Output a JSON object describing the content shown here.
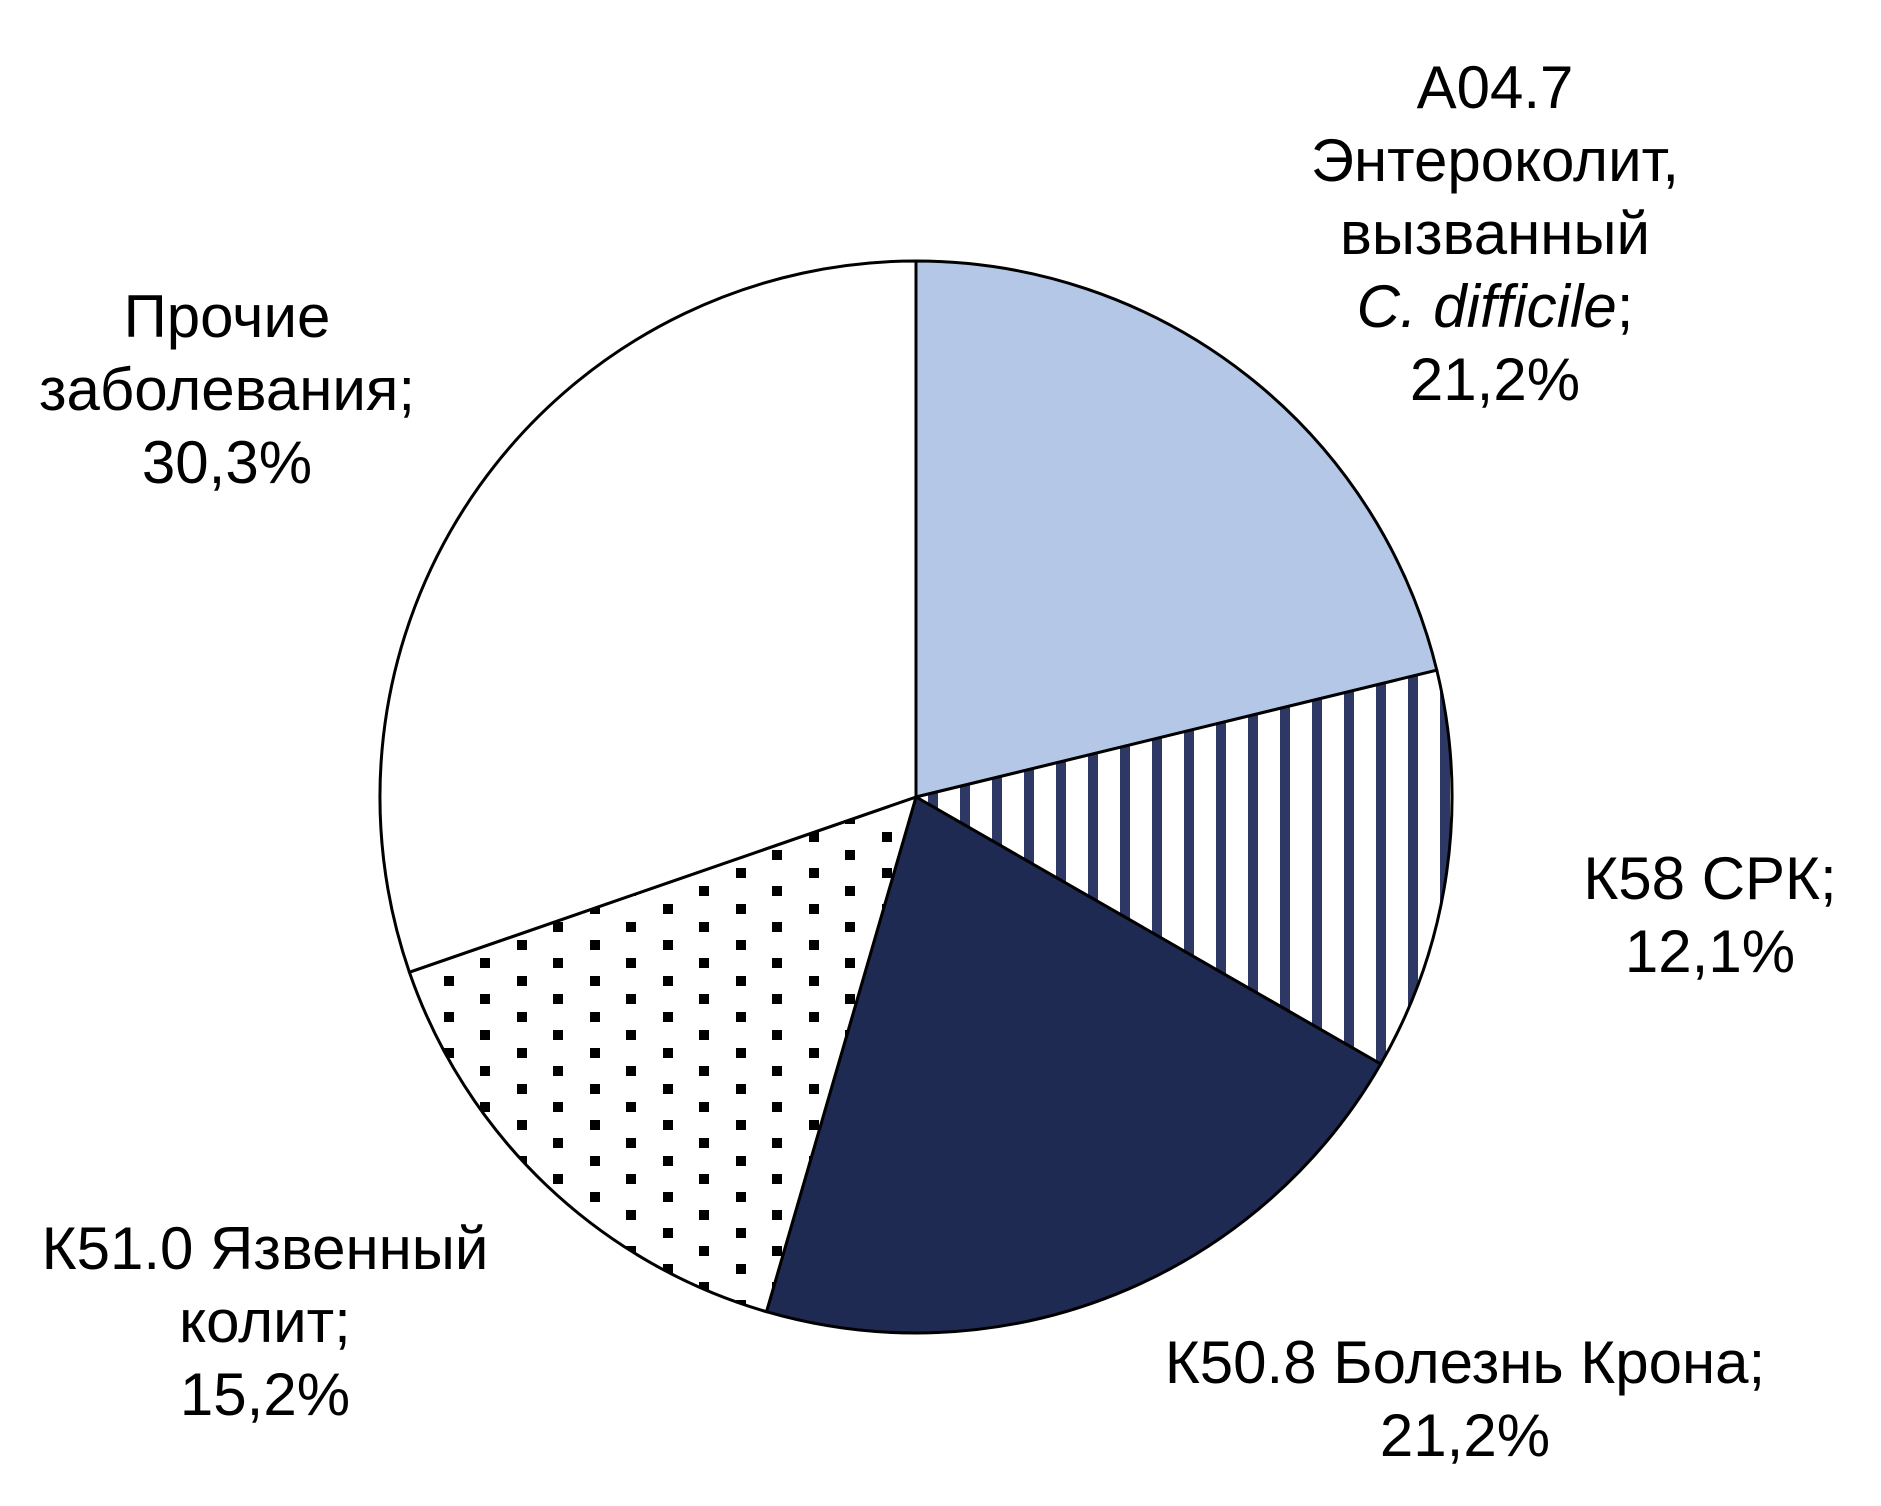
{
  "chart_data": {
    "type": "pie",
    "title": "",
    "legend": "none",
    "start_angle_deg": 0,
    "direction": "clockwise",
    "outline_color": "#000000",
    "background_color": "#ffffff",
    "pattern_colors": {
      "stripe": "#2d3864",
      "dot": "#000000",
      "pattern_background": "#ffffff"
    },
    "segments": [
      {
        "id": "a047",
        "label": "А04.7 Энтероколит, вызванный C. difficile",
        "value": 21.2,
        "percent_label": "21,2%",
        "fill": "#b4c7e7",
        "fill_style": "solid light blue"
      },
      {
        "id": "k58",
        "label": "К58 СРК",
        "value": 12.1,
        "percent_label": "12,1%",
        "fill": "stripes",
        "fill_style": "vertical navy stripes on white"
      },
      {
        "id": "k508",
        "label": "К50.8 Болезнь Крона",
        "value": 21.2,
        "percent_label": "21,2%",
        "fill": "#1f2a52",
        "fill_style": "solid dark navy"
      },
      {
        "id": "k510",
        "label": "К51.0 Язвенный колит",
        "value": 15.2,
        "percent_label": "15,2%",
        "fill": "dots",
        "fill_style": "black square dots on white"
      },
      {
        "id": "other",
        "label": "Прочие заболевания",
        "value": 30.3,
        "percent_label": "30,3%",
        "fill": "#ffffff",
        "fill_style": "plain white"
      }
    ]
  },
  "labels": {
    "a047": {
      "line1": "А04.7",
      "line2": "Энтероколит,",
      "line3": "вызванный",
      "line4_italic": "C. difficile",
      "line4_rest": ";",
      "line5": "21,2%"
    },
    "k58": {
      "line1": "К58 СРК;",
      "line2": "12,1%"
    },
    "k508": {
      "line1": "К50.8 Болезнь Крона;",
      "line2": "21,2%"
    },
    "k510": {
      "line1": "К51.0 Язвенный",
      "line2": "колит;",
      "line3": "15,2%"
    },
    "other": {
      "line1": "Прочие",
      "line2": "заболевания;",
      "line3": "30,3%"
    }
  }
}
